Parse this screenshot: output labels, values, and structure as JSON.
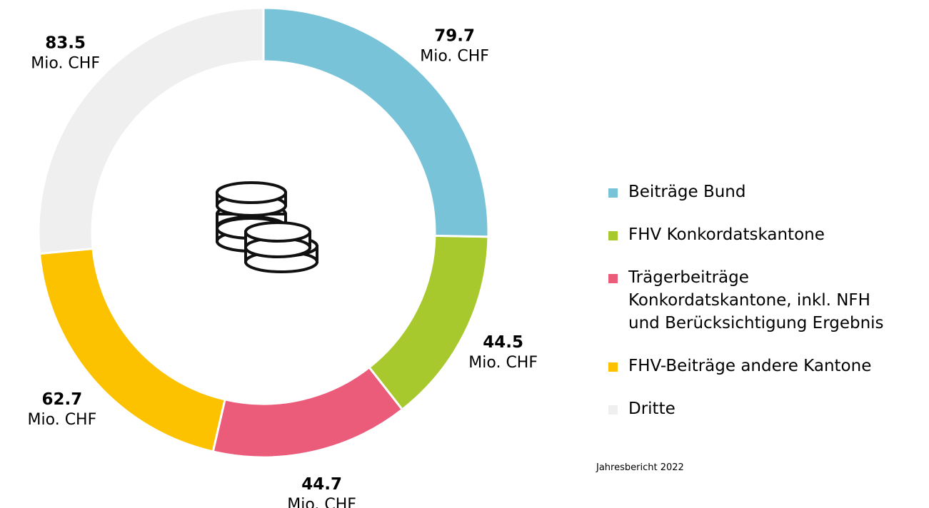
{
  "chart_data": {
    "type": "donut",
    "categories": [
      "Beiträge Bund",
      "FHV Konkordatskantone",
      "Trägerbeiträge\nKonkordatskantone, inkl. NFH\nund Berücksichtigung Ergebnis",
      "FHV-Beiträge andere Kantone",
      "Dritte"
    ],
    "values": [
      79.7,
      44.5,
      44.7,
      62.7,
      83.5
    ],
    "colors": [
      "#79c3d8",
      "#a8c92e",
      "#eb5b7a",
      "#fcc200",
      "#efefef"
    ],
    "unit": "Mio. CHF",
    "legend": "right",
    "source": "Jahresbericht 2022"
  }
}
